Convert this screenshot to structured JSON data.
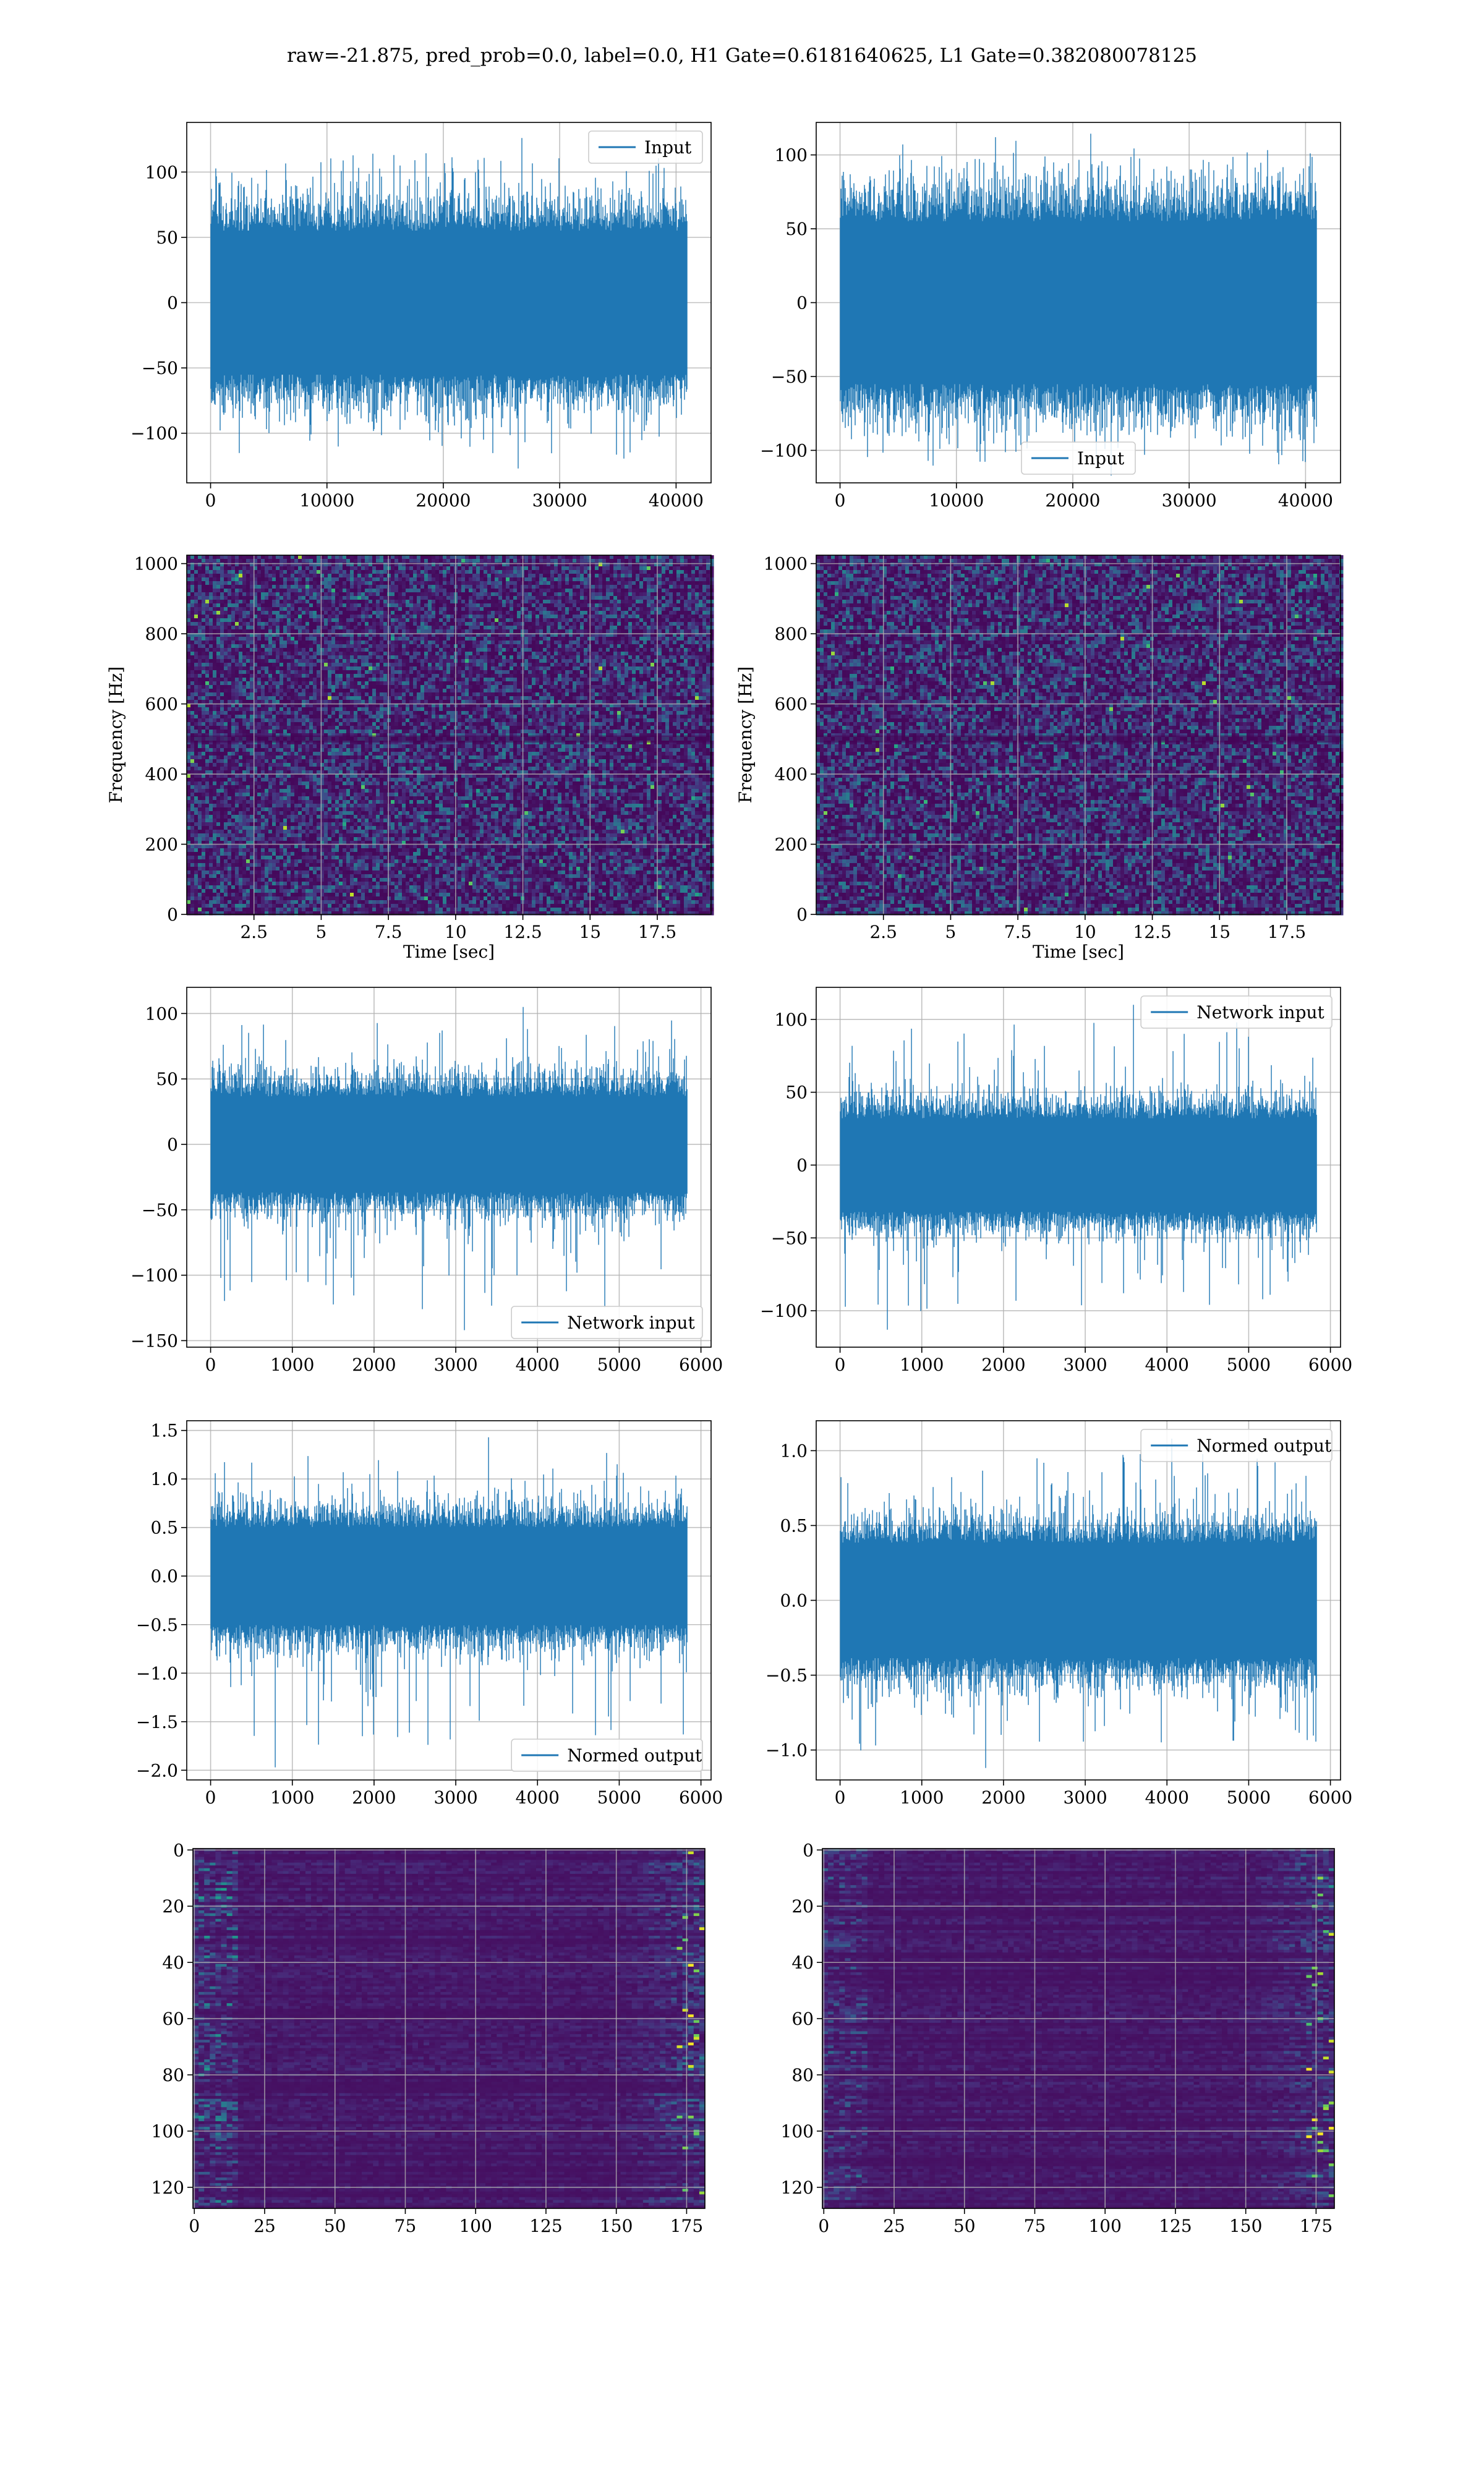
{
  "figure": {
    "title": "raw=-21.875, pred_prob=0.0, label=0.0, H1 Gate=0.6181640625, L1 Gate=0.382080078125",
    "colors": {
      "line": "#1f77b4",
      "grid": "#b0b0b0",
      "viridis_dark": "#440154",
      "viridis_bright": "#fde725"
    }
  },
  "chart_data": [
    {
      "type": "line",
      "panel": "row1-left",
      "title": "",
      "xlabel": "",
      "ylabel": "",
      "xlim": [
        -2048,
        43008
      ],
      "ylim": [
        -138,
        138
      ],
      "xticks": [
        0,
        10000,
        20000,
        30000,
        40000
      ],
      "yticks": [
        -100,
        -50,
        0,
        50,
        100
      ],
      "grid": true,
      "legend": "top-right",
      "series": [
        {
          "name": "Input",
          "n_samples": 40960,
          "band_core": 60,
          "peak_max": 126,
          "peak_min": -127
        }
      ]
    },
    {
      "type": "line",
      "panel": "row1-right",
      "title": "",
      "xlabel": "",
      "ylabel": "",
      "xlim": [
        -2048,
        43008
      ],
      "ylim": [
        -122,
        122
      ],
      "xticks": [
        0,
        10000,
        20000,
        30000,
        40000
      ],
      "yticks": [
        -100,
        -50,
        0,
        50,
        100
      ],
      "grid": true,
      "legend": "bottom-center",
      "series": [
        {
          "name": "Input",
          "n_samples": 40960,
          "band_core": 60,
          "peak_max": 112,
          "peak_min": -117
        }
      ]
    },
    {
      "type": "heatmap",
      "panel": "row2-left",
      "title": "",
      "xlabel": "Time [sec]",
      "ylabel": "Frequency [Hz]",
      "xlim": [
        0,
        19.5
      ],
      "ylim": [
        0,
        1024
      ],
      "xticks": [
        2.5,
        5.0,
        7.5,
        10.0,
        12.5,
        15.0,
        17.5
      ],
      "yticks": [
        0,
        200,
        400,
        600,
        800,
        1000
      ],
      "grid": true,
      "colormap": "viridis"
    },
    {
      "type": "heatmap",
      "panel": "row2-right",
      "title": "",
      "xlabel": "Time [sec]",
      "ylabel": "Frequency [Hz]",
      "xlim": [
        0,
        19.5
      ],
      "ylim": [
        0,
        1024
      ],
      "xticks": [
        2.5,
        5.0,
        7.5,
        10.0,
        12.5,
        15.0,
        17.5
      ],
      "yticks": [
        0,
        200,
        400,
        600,
        800,
        1000
      ],
      "grid": true,
      "colormap": "viridis"
    },
    {
      "type": "line",
      "panel": "row3-left",
      "title": "",
      "xlabel": "",
      "ylabel": "",
      "xlim": [
        -292,
        6124
      ],
      "ylim": [
        -155,
        120
      ],
      "xticks": [
        0,
        1000,
        2000,
        3000,
        4000,
        5000,
        6000
      ],
      "yticks": [
        -150,
        -100,
        -50,
        0,
        50,
        100
      ],
      "grid": true,
      "legend": "bottom-right",
      "series": [
        {
          "name": "Network input",
          "n_samples": 5832,
          "band_core": 40,
          "peak_max": 105,
          "peak_min": -142
        }
      ]
    },
    {
      "type": "line",
      "panel": "row3-right",
      "title": "",
      "xlabel": "",
      "ylabel": "",
      "xlim": [
        -292,
        6124
      ],
      "ylim": [
        -125,
        122
      ],
      "xticks": [
        0,
        1000,
        2000,
        3000,
        4000,
        5000,
        6000
      ],
      "yticks": [
        -100,
        -50,
        0,
        50,
        100
      ],
      "grid": true,
      "legend": "top-right",
      "series": [
        {
          "name": "Network input",
          "n_samples": 5832,
          "band_core": 35,
          "peak_max": 110,
          "peak_min": -113
        }
      ]
    },
    {
      "type": "line",
      "panel": "row4-left",
      "title": "",
      "xlabel": "",
      "ylabel": "",
      "xlim": [
        -292,
        6124
      ],
      "ylim": [
        -2.1,
        1.6
      ],
      "xticks": [
        0,
        1000,
        2000,
        3000,
        4000,
        5000,
        6000
      ],
      "yticks": [
        -2.0,
        -1.5,
        -1.0,
        -0.5,
        0.0,
        0.5,
        1.0,
        1.5
      ],
      "grid": true,
      "legend": "bottom-right",
      "series": [
        {
          "name": "Normed output",
          "n_samples": 5832,
          "band_core": 0.55,
          "peak_max": 1.43,
          "peak_min": -1.97
        }
      ]
    },
    {
      "type": "line",
      "panel": "row4-right",
      "title": "",
      "xlabel": "",
      "ylabel": "",
      "xlim": [
        -292,
        6124
      ],
      "ylim": [
        -1.2,
        1.2
      ],
      "xticks": [
        0,
        1000,
        2000,
        3000,
        4000,
        5000,
        6000
      ],
      "yticks": [
        -1.0,
        -0.5,
        0.0,
        0.5,
        1.0
      ],
      "grid": true,
      "legend": "top-right",
      "series": [
        {
          "name": "Normed output",
          "n_samples": 5832,
          "band_core": 0.42,
          "peak_max": 1.08,
          "peak_min": -1.12
        }
      ]
    },
    {
      "type": "heatmap",
      "panel": "row5-left",
      "title": "",
      "xlabel": "",
      "ylabel": "",
      "xlim": [
        -0.5,
        181.5
      ],
      "ylim": [
        127.5,
        -0.5
      ],
      "xticks": [
        0,
        25,
        50,
        75,
        100,
        125,
        150,
        175
      ],
      "yticks": [
        0,
        20,
        40,
        60,
        80,
        100,
        120
      ],
      "grid": true,
      "colormap": "viridis",
      "rows": 128,
      "cols": 182
    },
    {
      "type": "heatmap",
      "panel": "row5-right",
      "title": "",
      "xlabel": "",
      "ylabel": "",
      "xlim": [
        -0.5,
        181.5
      ],
      "ylim": [
        127.5,
        -0.5
      ],
      "xticks": [
        0,
        25,
        50,
        75,
        100,
        125,
        150,
        175
      ],
      "yticks": [
        0,
        20,
        40,
        60,
        80,
        100,
        120
      ],
      "grid": true,
      "colormap": "viridis",
      "rows": 128,
      "cols": 182
    }
  ]
}
